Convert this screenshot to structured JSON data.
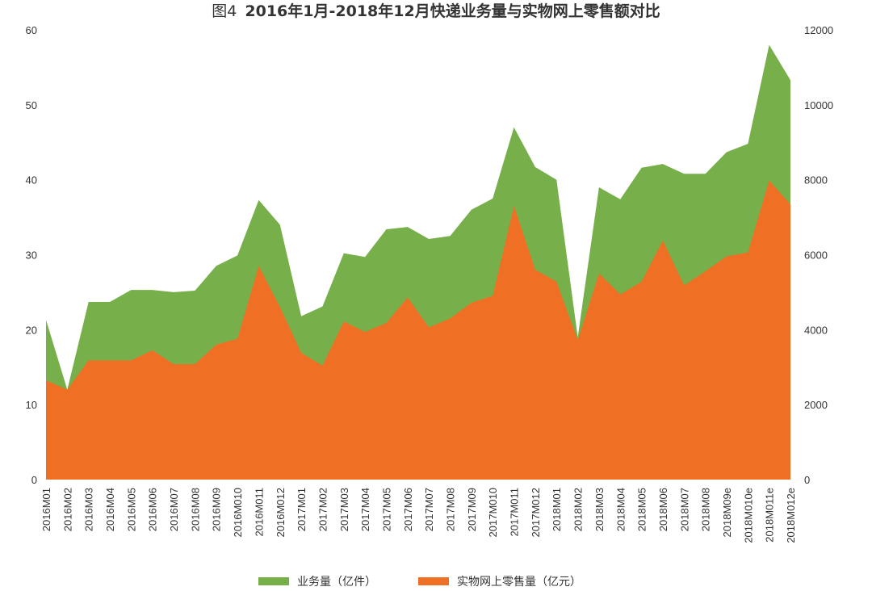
{
  "title": {
    "figure_label": "图4",
    "text": "2016年1月-2018年12月快递业务量与实物网上零售额对比"
  },
  "colors": {
    "green": "#77b04a",
    "orange": "#ef7024"
  },
  "chart_data": {
    "type": "area",
    "categories": [
      "2016M01",
      "2016M02",
      "2016M03",
      "2016M04",
      "2016M05",
      "2016M06",
      "2016M07",
      "2016M08",
      "2016M09",
      "2016M010",
      "2016M011",
      "2016M012",
      "2017M01",
      "2017M02",
      "2017M03",
      "2017M04",
      "2017M05",
      "2017M06",
      "2017M07",
      "2017M08",
      "2017M09",
      "2017M010",
      "2017M011",
      "2017M012",
      "2018M01",
      "2018M02",
      "2018M03",
      "2018M04",
      "2018M05",
      "2018M06",
      "2018M07",
      "2018M08",
      "2018M09e",
      "2018M010e",
      "2018M011e",
      "2018M012e"
    ],
    "y_left": {
      "ylim": [
        0,
        60
      ],
      "ticks": [
        0,
        10,
        20,
        30,
        40,
        50,
        60
      ]
    },
    "y_right": {
      "ylim": [
        0,
        12000
      ],
      "ticks": [
        0,
        2000,
        4000,
        6000,
        8000,
        10000,
        12000
      ]
    },
    "series": [
      {
        "name": "业务量（亿件）",
        "axis": "left",
        "color": "#77b04a",
        "values": [
          21.3,
          12.0,
          23.7,
          23.7,
          25.3,
          25.3,
          25.0,
          25.2,
          28.5,
          29.9,
          37.3,
          34.0,
          21.8,
          23.1,
          30.2,
          29.7,
          33.4,
          33.7,
          32.1,
          32.5,
          36.0,
          37.5,
          47.0,
          41.7,
          40.0,
          19.0,
          39.0,
          37.4,
          41.6,
          42.1,
          40.8,
          40.8,
          43.7,
          44.8,
          58.0,
          53.3
        ]
      },
      {
        "name": "实物网上零售量（亿元）",
        "axis": "right",
        "color": "#ef7024",
        "values": [
          2650,
          2400,
          3180,
          3180,
          3180,
          3450,
          3080,
          3080,
          3600,
          3760,
          5700,
          4600,
          3380,
          3040,
          4220,
          3940,
          4180,
          4860,
          4060,
          4300,
          4720,
          4900,
          7300,
          5600,
          5280,
          3720,
          5500,
          4940,
          5280,
          6380,
          5180,
          5560,
          5960,
          6060,
          7980,
          7340
        ]
      }
    ],
    "legend": {
      "placement": "bottom"
    }
  }
}
